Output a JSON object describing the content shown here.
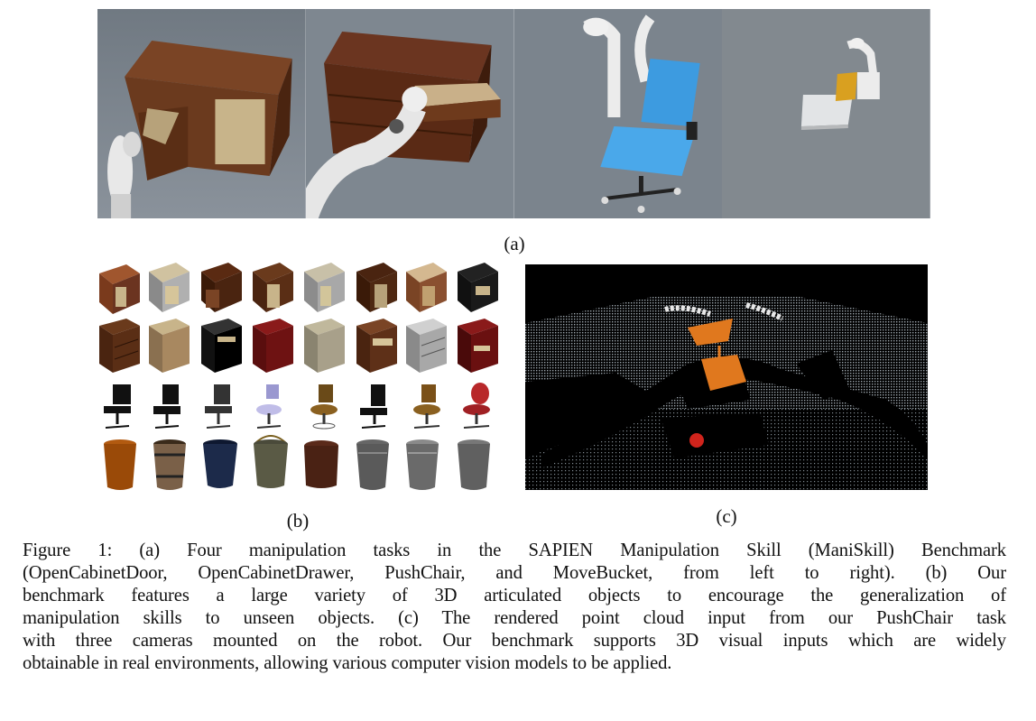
{
  "figure": {
    "panel_a_label": "(a)",
    "panel_b_label": "(b)",
    "panel_c_label": "(c)",
    "caption_lines": [
      "Figure 1: (a) Four manipulation tasks in the SAPIEN Manipulation Skill (ManiSkill) Benchmark",
      "(OpenCabinetDoor, OpenCabinetDrawer, PushChair, and MoveBucket, from left to right). (b) Our",
      "benchmark features a large variety of 3D articulated objects to encourage the generalization of",
      "manipulation skills to unseen objects. (c) The rendered point cloud input from our PushChair task",
      "with three cameras mounted on the robot. Our benchmark supports 3D visual inputs which are widely",
      "obtainable in real environments, allowing various computer vision models to be applied."
    ]
  },
  "colors": {
    "scene_bg": "#7c8590",
    "wood": "#6b3a1e",
    "wood_dark": "#4a2410",
    "chair_blue": "#3a9ad9",
    "robot_white": "#e8e8e8",
    "bucket_yellow": "#d9a020",
    "pointcloud_orange": "#e0781e"
  }
}
